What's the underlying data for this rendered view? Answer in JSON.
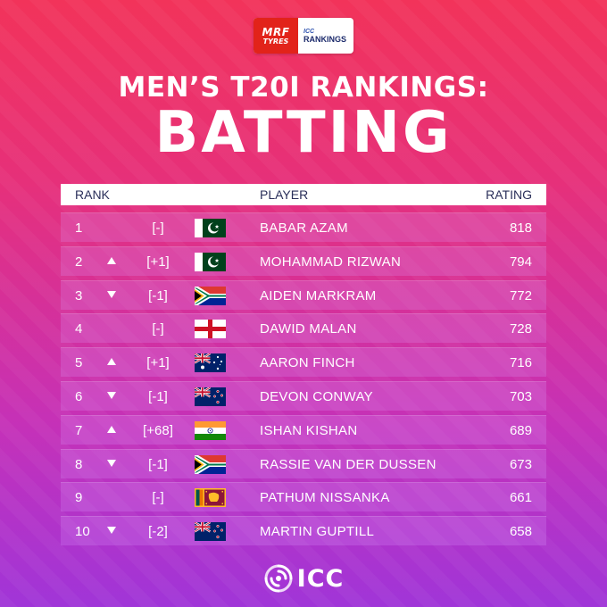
{
  "sponsor": {
    "mrf_line1": "MRF",
    "mrf_line2": "TYRES",
    "icc_small": "ICC",
    "rankings_label": "RANKINGS"
  },
  "title_line1": "MEN’S T20I RANKINGS:",
  "title_line2": "BATTING",
  "columns": {
    "rank": "RANK",
    "player": "PLAYER",
    "rating": "RATING"
  },
  "rows": [
    {
      "rank": "1",
      "movement": "none",
      "change": "[-]",
      "flag": "PAK",
      "player": "BABAR AZAM",
      "rating": "818"
    },
    {
      "rank": "2",
      "movement": "up",
      "change": "[+1]",
      "flag": "PAK",
      "player": "MOHAMMAD RIZWAN",
      "rating": "794"
    },
    {
      "rank": "3",
      "movement": "down",
      "change": "[-1]",
      "flag": "RSA",
      "player": "AIDEN MARKRAM",
      "rating": "772"
    },
    {
      "rank": "4",
      "movement": "none",
      "change": "[-]",
      "flag": "ENG",
      "player": "DAWID MALAN",
      "rating": "728"
    },
    {
      "rank": "5",
      "movement": "up",
      "change": "[+1]",
      "flag": "AUS",
      "player": "AARON FINCH",
      "rating": "716"
    },
    {
      "rank": "6",
      "movement": "down",
      "change": "[-1]",
      "flag": "NZ",
      "player": "DEVON CONWAY",
      "rating": "703"
    },
    {
      "rank": "7",
      "movement": "up",
      "change": "[+68]",
      "flag": "IND",
      "player": "ISHAN KISHAN",
      "rating": "689"
    },
    {
      "rank": "8",
      "movement": "down",
      "change": "[-1]",
      "flag": "RSA",
      "player": "RASSIE VAN DER DUSSEN",
      "rating": "673"
    },
    {
      "rank": "9",
      "movement": "none",
      "change": "[-]",
      "flag": "SL",
      "player": "PATHUM NISSANKA",
      "rating": "661"
    },
    {
      "rank": "10",
      "movement": "down",
      "change": "[-2]",
      "flag": "NZ",
      "player": "MARTIN GUPTILL",
      "rating": "658"
    }
  ],
  "footer_logo": "ICC"
}
